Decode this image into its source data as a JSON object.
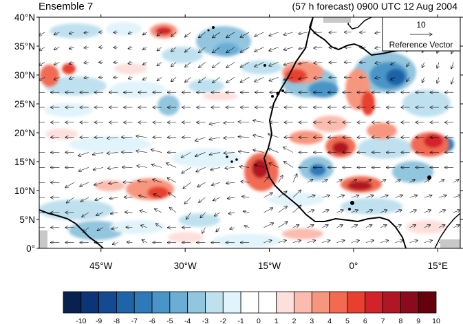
{
  "header": {
    "ensemble_label": "Ensemble 7",
    "forecast_label": "(57 h forecast) 0900 UTC 12 Aug 2004"
  },
  "map": {
    "projection": "cylindrical-equidistant",
    "lon_range": [
      -56,
      19
    ],
    "lat_range": [
      0,
      40
    ],
    "lat_ticks": [
      "0°",
      "5°N",
      "10°N",
      "15°N",
      "20°N",
      "25°N",
      "30°N",
      "35°N",
      "40°N"
    ],
    "lon_ticks": [
      "45°W",
      "30°W",
      "15°W",
      "0°",
      "15°E"
    ],
    "features": [
      "coastline West Africa",
      "coastline South America",
      "Mediterranean coast",
      "Canary and Cape Verde islands"
    ],
    "shaded_field_range": [
      -10,
      10
    ],
    "wind_vectors": "shown"
  },
  "reference_vector": {
    "magnitude": "10",
    "label": "Reference Vector"
  },
  "colorbar": {
    "labels": [
      "-10",
      "-9",
      "-8",
      "-7",
      "-6",
      "-5",
      "-4",
      "-3",
      "-2",
      "-1",
      "0",
      "1",
      "2",
      "3",
      "4",
      "5",
      "6",
      "7",
      "8",
      "9",
      "10"
    ],
    "colors": [
      "#08214f",
      "#0b3577",
      "#144a92",
      "#1f63a8",
      "#2e7ab9",
      "#4895c7",
      "#6aaed6",
      "#92c5de",
      "#bfe1ef",
      "#e1f3fb",
      "#ffffff",
      "#ffffff",
      "#fde0dd",
      "#fbbcb0",
      "#f7967f",
      "#f26a52",
      "#e8402f",
      "#d2222a",
      "#b01624",
      "#8b0b1d",
      "#67000d"
    ]
  }
}
